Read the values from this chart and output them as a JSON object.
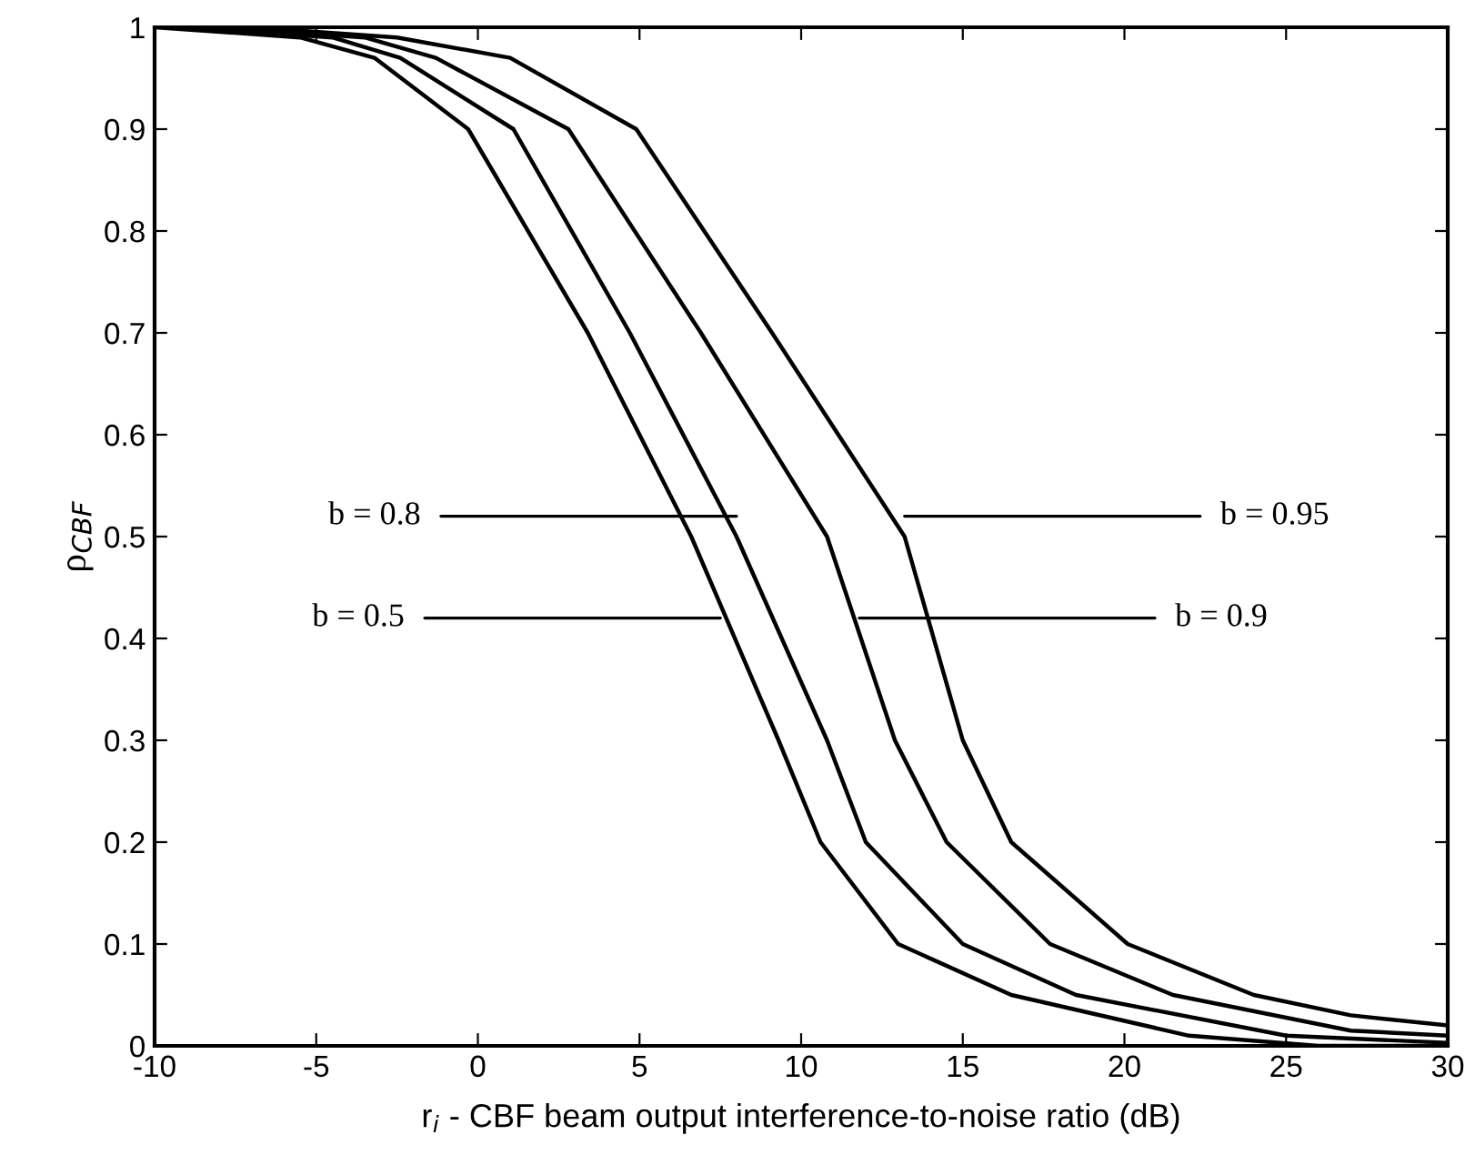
{
  "chart_data": {
    "type": "line",
    "xlabel": "r$_{i}$ - CBF beam output interference-to-noise ratio (dB)",
    "ylabel": "ρ$_{CBF}$",
    "series": [
      {
        "color": "#000000",
        "x": [
          -10,
          -5.5,
          -3.2,
          -0.3,
          3.4,
          6.6,
          9.3,
          10.6,
          13.0,
          16.5,
          22,
          26,
          30
        ],
        "values": [
          1,
          0.99,
          0.97,
          0.9,
          0.7,
          0.5,
          0.3,
          0.2,
          0.1,
          0.05,
          0.01,
          0,
          0
        ]
      },
      {
        "color": "#000000",
        "x": [
          -9,
          -4.5,
          -2.4,
          1.1,
          4.7,
          8.0,
          10.8,
          12.0,
          15.0,
          18.5,
          25,
          30
        ],
        "values": [
          1,
          0.99,
          0.97,
          0.9,
          0.7,
          0.5,
          0.3,
          0.2,
          0.1,
          0.05,
          0.01,
          0.003
        ]
      },
      {
        "color": "#000000",
        "x": [
          -8,
          -3.5,
          -1.3,
          2.8,
          6.9,
          10.8,
          12.9,
          14.5,
          17.7,
          21.5,
          27,
          30
        ],
        "values": [
          1,
          0.99,
          0.97,
          0.9,
          0.7,
          0.5,
          0.3,
          0.2,
          0.1,
          0.05,
          0.015,
          0.01
        ]
      },
      {
        "color": "#000000",
        "x": [
          -7,
          -2.5,
          1.0,
          4.9,
          9.1,
          13.2,
          15.0,
          16.5,
          20.1,
          24,
          27,
          30
        ],
        "values": [
          1,
          0.99,
          0.97,
          0.9,
          0.7,
          0.5,
          0.3,
          0.2,
          0.1,
          0.05,
          0.03,
          0.02
        ]
      }
    ],
    "annotations": [
      {
        "text": "b = 0.8",
        "x": 8.0,
        "y": 0.52
      },
      {
        "text": "b = 0.5",
        "x": 7.5,
        "y": 0.42
      },
      {
        "text": "b = 0.95",
        "x": 13.2,
        "y": 0.52
      },
      {
        "text": "b = 0.9",
        "x": 11.8,
        "y": 0.42
      }
    ],
    "xlim": [
      -10,
      30
    ],
    "ylim": [
      0,
      1
    ],
    "xticks": [
      -10,
      -5,
      0,
      5,
      10,
      15,
      20,
      25,
      30
    ],
    "yticks": [
      0,
      0.1,
      0.2,
      0.3,
      0.4,
      0.5,
      0.6,
      0.7,
      0.8,
      0.9,
      1
    ],
    "grid": false,
    "marker": "none",
    "line_style": "solid"
  }
}
